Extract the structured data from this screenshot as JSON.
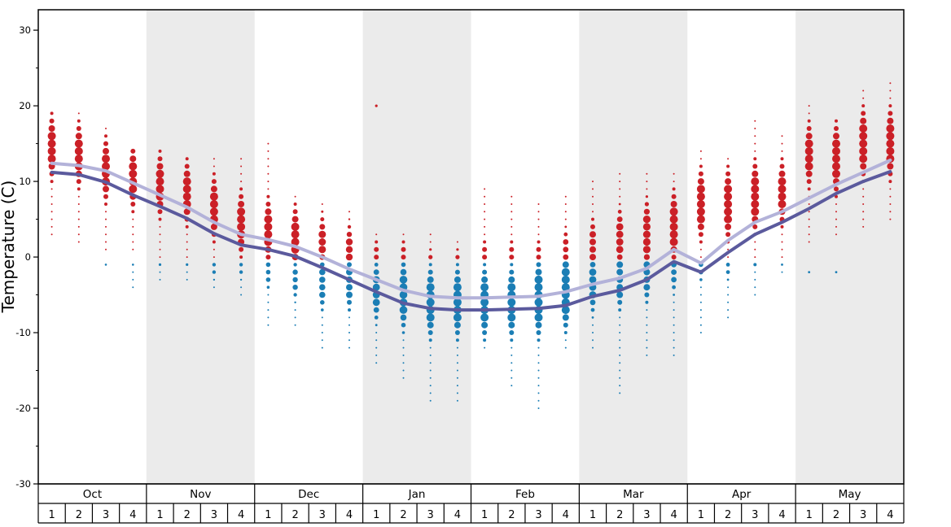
{
  "axis": {
    "ylabel": "Temperature (C)",
    "ymin": -30,
    "ymax": 32.7,
    "yticks": [
      30,
      20,
      10,
      0,
      -10,
      -20,
      -30
    ],
    "minor_tick_step": 5
  },
  "months": [
    {
      "label": "Oct",
      "shaded": false
    },
    {
      "label": "Nov",
      "shaded": true
    },
    {
      "label": "Dec",
      "shaded": false
    },
    {
      "label": "Jan",
      "shaded": true
    },
    {
      "label": "Feb",
      "shaded": false
    },
    {
      "label": "Mar",
      "shaded": true
    },
    {
      "label": "Apr",
      "shaded": false
    },
    {
      "label": "May",
      "shaded": true
    }
  ],
  "week_labels": [
    "1",
    "2",
    "3",
    "4"
  ],
  "colors": {
    "red_dot": "#cb2027",
    "blue_dot": "#1b7eb5",
    "line_max": "#b3b2d9",
    "line_min": "#5b5a9d",
    "band": "#ebebeb",
    "axis": "#000000"
  },
  "chart_data": {
    "type": "scatter",
    "x_unit": "week-of-month, Oct through May, 4 weeks per month (32 columns)",
    "dot_legend": "red = temperatures above freezing, blue = temperatures below freezing; dot size = relative frequency at that 1°C step",
    "series": [
      {
        "name": "average-max-temperature",
        "color_key": "line_max",
        "values": [
          12.4,
          12.1,
          11.4,
          9.8,
          8.2,
          6.6,
          4.6,
          3.0,
          2.3,
          1.4,
          0.0,
          -1.6,
          -3.0,
          -4.4,
          -5.2,
          -5.4,
          -5.4,
          -5.3,
          -5.2,
          -4.6,
          -3.6,
          -2.8,
          -1.5,
          1.0,
          -0.8,
          2.2,
          4.6,
          6.0,
          7.8,
          9.6,
          11.2,
          12.8
        ]
      },
      {
        "name": "average-min-temperature",
        "color_key": "line_min",
        "values": [
          11.2,
          10.9,
          9.9,
          8.2,
          6.7,
          5.1,
          3.1,
          1.6,
          1.0,
          0.1,
          -1.4,
          -3.0,
          -4.6,
          -6.1,
          -6.8,
          -7.0,
          -7.0,
          -6.9,
          -6.8,
          -6.4,
          -5.2,
          -4.4,
          -3.0,
          -0.6,
          -2.0,
          0.6,
          3.0,
          4.6,
          6.4,
          8.4,
          10.0,
          11.3
        ]
      }
    ],
    "dot_columns": [
      {
        "red": [
          3,
          19,
          13,
          16,
          5
        ],
        "blue": null
      },
      {
        "red": [
          2,
          19,
          12,
          15,
          5
        ],
        "blue": null
      },
      {
        "red": [
          1,
          17,
          10,
          13,
          5
        ],
        "blue": [
          -1,
          -1,
          -1,
          -1,
          1.3
        ]
      },
      {
        "red": [
          1,
          14,
          9,
          12,
          5
        ],
        "blue": [
          -4,
          -1,
          -1,
          -1,
          1.3
        ]
      },
      {
        "red": [
          0,
          14,
          8,
          11,
          5
        ],
        "blue": [
          -3,
          -1,
          -1,
          -1,
          1.6
        ]
      },
      {
        "red": [
          0,
          13,
          7,
          10,
          5
        ],
        "blue": [
          -3,
          -1,
          -1,
          -1,
          1.6
        ]
      },
      {
        "red": [
          0,
          13,
          5,
          8,
          5
        ],
        "blue": [
          -4,
          -1,
          -2,
          -1,
          2.2
        ]
      },
      {
        "red": [
          0,
          13,
          3,
          6,
          5
        ],
        "blue": [
          -5,
          -1,
          -2,
          -1,
          2.2
        ]
      },
      {
        "red": [
          0,
          15,
          2,
          5,
          5
        ],
        "blue": [
          -9,
          -1,
          -3,
          -1,
          2.8
        ]
      },
      {
        "red": [
          0,
          8,
          1,
          4,
          5
        ],
        "blue": [
          -9,
          -1,
          -4,
          -2,
          3.2
        ]
      },
      {
        "red": [
          0,
          7,
          1,
          3,
          4.5
        ],
        "blue": [
          -12,
          -1,
          -5,
          -2,
          3.8
        ]
      },
      {
        "red": [
          0,
          6,
          0,
          2,
          4.2
        ],
        "blue": [
          -12,
          -1,
          -5,
          -2,
          4
        ]
      },
      {
        "red": [
          0,
          3,
          0,
          1,
          3
        ],
        "blue": [
          -14,
          -1,
          -6,
          -3,
          4.4
        ]
      },
      {
        "red": [
          0,
          3,
          0,
          1,
          3
        ],
        "blue": [
          -16,
          -1,
          -7,
          -3,
          4.8
        ]
      },
      {
        "red": [
          0,
          3,
          0,
          0,
          2.6
        ],
        "blue": [
          -19,
          -1,
          -8,
          -4,
          5
        ]
      },
      {
        "red": [
          0,
          2,
          0,
          0,
          2.6
        ],
        "blue": [
          -19,
          -1,
          -8,
          -4,
          5
        ]
      },
      {
        "red": [
          0,
          9,
          0,
          1,
          3
        ],
        "blue": [
          -12,
          -1,
          -8,
          -4,
          5
        ]
      },
      {
        "red": [
          0,
          8,
          0,
          1,
          3
        ],
        "blue": [
          -17,
          -1,
          -8,
          -4,
          5
        ]
      },
      {
        "red": [
          0,
          7,
          0,
          1,
          3
        ],
        "blue": [
          -20,
          -1,
          -8,
          -3,
          5
        ]
      },
      {
        "red": [
          0,
          8,
          0,
          2,
          3.4
        ],
        "blue": [
          -12,
          -1,
          -7,
          -2,
          5
        ]
      },
      {
        "red": [
          0,
          10,
          0,
          3,
          4
        ],
        "blue": [
          -12,
          -1,
          -5,
          -2,
          4.4
        ]
      },
      {
        "red": [
          0,
          11,
          1,
          4,
          4.4
        ],
        "blue": [
          -18,
          -1,
          -5,
          -1,
          4
        ]
      },
      {
        "red": [
          0,
          11,
          1,
          5,
          4.6
        ],
        "blue": [
          -13,
          -1,
          -4,
          -1,
          4
        ]
      },
      {
        "red": [
          0,
          11,
          2,
          6,
          5
        ],
        "blue": [
          -13,
          -1,
          -3,
          -1,
          3.4
        ]
      },
      {
        "red": [
          0,
          14,
          5,
          9,
          5
        ],
        "blue": [
          -10,
          -1,
          -2,
          -1,
          2.8
        ]
      },
      {
        "red": [
          0,
          13,
          5,
          9,
          5
        ],
        "blue": [
          -8,
          -1,
          -2,
          -1,
          2.4
        ]
      },
      {
        "red": [
          0,
          18,
          6,
          10,
          5
        ],
        "blue": [
          -5,
          -1,
          -1,
          -1,
          2
        ]
      },
      {
        "red": [
          0,
          16,
          7,
          10,
          5
        ],
        "blue": [
          -2,
          -1,
          -1,
          -1,
          1.4
        ]
      },
      {
        "red": [
          2,
          20,
          12,
          15,
          5
        ],
        "blue": [
          -2,
          -2,
          -2,
          -2,
          1.4
        ]
      },
      {
        "red": [
          3,
          18,
          11,
          15,
          5
        ],
        "blue": [
          -2,
          -2,
          -2,
          -2,
          1.4
        ]
      },
      {
        "red": [
          4,
          22,
          13,
          17,
          5
        ],
        "blue": null
      },
      {
        "red": [
          5,
          23,
          13,
          17,
          5
        ],
        "blue": null
      }
    ],
    "outliers": [
      {
        "week_index": 12,
        "t": 20,
        "color": "red",
        "r": 1.6
      }
    ]
  }
}
